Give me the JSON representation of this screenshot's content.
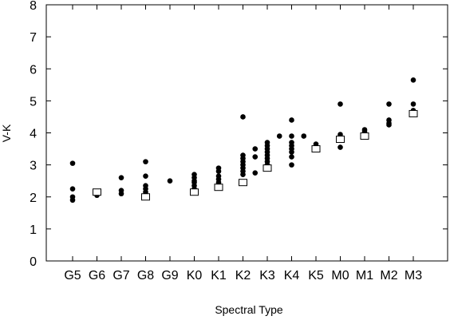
{
  "chart_data": {
    "type": "scatter",
    "title": "",
    "xlabel": "Spectral Type",
    "ylabel": "V-K",
    "categories": [
      "G5",
      "G6",
      "G7",
      "G8",
      "G9",
      "K0",
      "K1",
      "K2",
      "K3",
      "K4",
      "K5",
      "M0",
      "M1",
      "M2",
      "M3"
    ],
    "ylim": [
      0,
      8
    ],
    "yticks": [
      "0",
      "1",
      "2",
      "3",
      "4",
      "5",
      "6",
      "7",
      "8"
    ],
    "grid": false,
    "series": [
      {
        "marker": "filled-circle",
        "color": "#000000",
        "points": [
          [
            "G5",
            3.05
          ],
          [
            "G5",
            2.25
          ],
          [
            "G5",
            2.0
          ],
          [
            "G5",
            1.9
          ],
          [
            "G6",
            2.1
          ],
          [
            "G6",
            2.05
          ],
          [
            "G7",
            2.6
          ],
          [
            "G7",
            2.2
          ],
          [
            "G7",
            2.1
          ],
          [
            "G8",
            3.1
          ],
          [
            "G8",
            2.65
          ],
          [
            "G8",
            2.35
          ],
          [
            "G8",
            2.25
          ],
          [
            "G8",
            2.15
          ],
          [
            "G8",
            2.05
          ],
          [
            "G9",
            2.5
          ],
          [
            "K0",
            2.7
          ],
          [
            "K0",
            2.6
          ],
          [
            "K0",
            2.5
          ],
          [
            "K0",
            2.45
          ],
          [
            "K0",
            2.35
          ],
          [
            "K0",
            2.25
          ],
          [
            "K0",
            2.15
          ],
          [
            "K1",
            2.9
          ],
          [
            "K1",
            2.8
          ],
          [
            "K1",
            2.65
          ],
          [
            "K1",
            2.55
          ],
          [
            "K1",
            2.45
          ],
          [
            "K1",
            2.35
          ],
          [
            "K2",
            4.5
          ],
          [
            "K2",
            3.3
          ],
          [
            "K2",
            3.2
          ],
          [
            "K2",
            3.1
          ],
          [
            "K2",
            3.0
          ],
          [
            "K2",
            2.9
          ],
          [
            "K2",
            2.8
          ],
          [
            "K2",
            2.7
          ],
          [
            "K2.5",
            3.5
          ],
          [
            "K2.5",
            3.25
          ],
          [
            "K2.5",
            2.75
          ],
          [
            "K3",
            3.7
          ],
          [
            "K3",
            3.6
          ],
          [
            "K3",
            3.5
          ],
          [
            "K3",
            3.4
          ],
          [
            "K3",
            3.3
          ],
          [
            "K3",
            3.2
          ],
          [
            "K3",
            3.1
          ],
          [
            "K3",
            3.0
          ],
          [
            "K3.5",
            3.9
          ],
          [
            "K4",
            4.4
          ],
          [
            "K4",
            3.9
          ],
          [
            "K4",
            3.7
          ],
          [
            "K4",
            3.6
          ],
          [
            "K4",
            3.5
          ],
          [
            "K4",
            3.4
          ],
          [
            "K4",
            3.25
          ],
          [
            "K4",
            3.0
          ],
          [
            "K4.5",
            3.9
          ],
          [
            "K5",
            3.65
          ],
          [
            "K5",
            3.5
          ],
          [
            "M0",
            4.9
          ],
          [
            "M0",
            3.95
          ],
          [
            "M0",
            3.55
          ],
          [
            "M1",
            4.1
          ],
          [
            "M1",
            4.05
          ],
          [
            "M2",
            4.9
          ],
          [
            "M2",
            4.4
          ],
          [
            "M2",
            4.3
          ],
          [
            "M2",
            4.25
          ],
          [
            "M3",
            5.65
          ],
          [
            "M3",
            4.9
          ],
          [
            "M3",
            4.7
          ]
        ]
      },
      {
        "marker": "open-square",
        "color": "#000000",
        "points": [
          [
            "G6",
            2.15
          ],
          [
            "G8",
            2.0
          ],
          [
            "K0",
            2.15
          ],
          [
            "K1",
            2.3
          ],
          [
            "K2",
            2.45
          ],
          [
            "K3",
            2.9
          ],
          [
            "K5",
            3.5
          ],
          [
            "M0",
            3.8
          ],
          [
            "M1",
            3.9
          ],
          [
            "M3",
            4.6
          ]
        ]
      }
    ]
  }
}
